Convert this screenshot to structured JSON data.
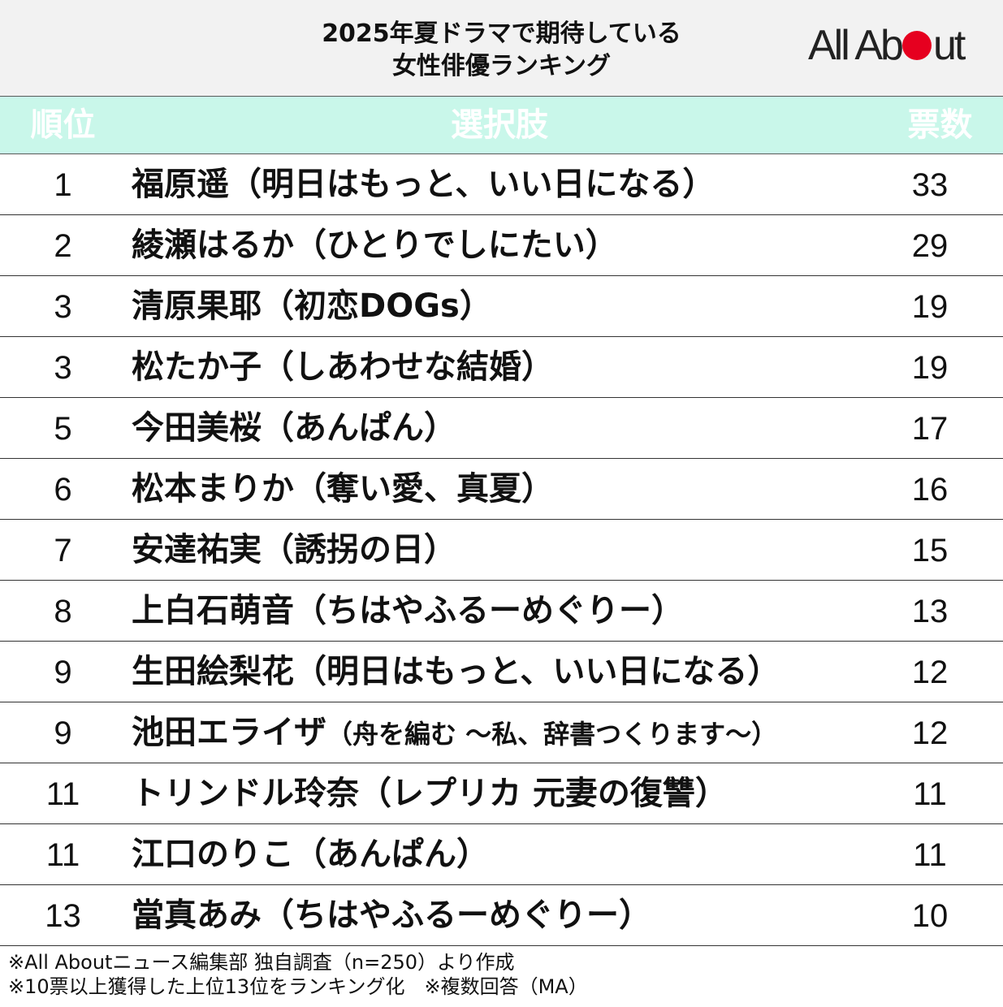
{
  "header": {
    "title_line1": "2025年夏ドラマで期待している",
    "title_line2": "女性俳優ランキング",
    "logo_before": "All Ab",
    "logo_after": "ut",
    "logo_accent_color": "#e6001f"
  },
  "columns": {
    "rank": "順位",
    "choice": "選択肢",
    "votes": "票数",
    "header_bg": "#c9f7ea"
  },
  "rows": [
    {
      "rank": "1",
      "name": "福原遥（明日はもっと、いい日になる）",
      "note": "",
      "votes": "33"
    },
    {
      "rank": "2",
      "name": "綾瀬はるか（ひとりでしにたい）",
      "note": "",
      "votes": "29"
    },
    {
      "rank": "3",
      "name": "清原果耶（初恋DOGs）",
      "note": "",
      "votes": "19"
    },
    {
      "rank": "3",
      "name": "松たか子（しあわせな結婚）",
      "note": "",
      "votes": "19"
    },
    {
      "rank": "5",
      "name": "今田美桜（あんぱん）",
      "note": "",
      "votes": "17"
    },
    {
      "rank": "6",
      "name": "松本まりか（奪い愛、真夏）",
      "note": "",
      "votes": "16"
    },
    {
      "rank": "7",
      "name": "安達祐実（誘拐の日）",
      "note": "",
      "votes": "15"
    },
    {
      "rank": "8",
      "name": "上白石萌音（ちはやふるーめぐりー）",
      "note": "",
      "votes": "13"
    },
    {
      "rank": "9",
      "name": "生田絵梨花（明日はもっと、いい日になる）",
      "note": "",
      "votes": "12"
    },
    {
      "rank": "9",
      "name": "池田エライザ",
      "note": "（舟を編む ～私、辞書つくります～）",
      "votes": "12"
    },
    {
      "rank": "11",
      "name": "トリンドル玲奈（レプリカ 元妻の復讐）",
      "note": "",
      "votes": "11"
    },
    {
      "rank": "11",
      "name": "江口のりこ（あんぱん）",
      "note": "",
      "votes": "11"
    },
    {
      "rank": "13",
      "name": "當真あみ（ちはやふるーめぐりー）",
      "note": "",
      "votes": "10"
    }
  ],
  "footer": {
    "note1": "※All Aboutニュース編集部 独自調査（n=250）より作成",
    "note2": "※10票以上獲得した上位13位をランキング化　※複数回答（MA）"
  }
}
